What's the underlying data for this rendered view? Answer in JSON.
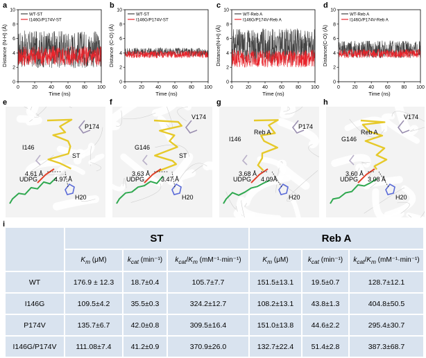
{
  "panels": {
    "a": {
      "label": "a",
      "ylabel": "Distance (N-H) (Å)",
      "xlabel": "Time (ns)",
      "legend": [
        "WT-ST",
        "I146G/P174V-ST"
      ]
    },
    "b": {
      "label": "b",
      "ylabel": "Distance (C-O) (Å)",
      "xlabel": "Time (ns)",
      "legend": [
        "WT-ST",
        "I146G/P174V-ST"
      ]
    },
    "c": {
      "label": "c",
      "ylabel": "Distance(N-H) (Å)",
      "xlabel": "Time (ns)",
      "legend": [
        "WT-Reb A",
        "I146G/P174V-Reb A"
      ]
    },
    "d": {
      "label": "d",
      "ylabel": "Distance(C-O) (Å)",
      "xlabel": "Time (ns)",
      "legend": [
        "WT-Reb A",
        "I146G/P174V-Reb A"
      ]
    }
  },
  "chart_data": [
    {
      "type": "line",
      "panel": "a",
      "title": "",
      "xlabel": "Time (ns)",
      "ylabel": "Distance (N-H) (Å)",
      "xlim": [
        0,
        100
      ],
      "ylim": [
        0,
        10
      ],
      "xticks": [
        0,
        20,
        40,
        60,
        80,
        100
      ],
      "yticks": [
        0,
        2,
        4,
        6,
        8,
        10
      ],
      "series": [
        {
          "name": "WT-ST",
          "color": "#3f3f3f",
          "baseline": 4.5,
          "spread": 2.6,
          "until": 100
        },
        {
          "name": "I146G/P174V-ST",
          "color": "#e8242b",
          "baseline": 3.6,
          "spread": 1.4,
          "until": 100
        }
      ]
    },
    {
      "type": "line",
      "panel": "b",
      "title": "",
      "xlabel": "Time (ns)",
      "ylabel": "Distance (C-O) (Å)",
      "xlim": [
        0,
        100
      ],
      "ylim": [
        0,
        10
      ],
      "xticks": [
        0,
        20,
        40,
        60,
        80,
        100
      ],
      "yticks": [
        0,
        2,
        4,
        6,
        8,
        10
      ],
      "series": [
        {
          "name": "WT-ST",
          "color": "#3f3f3f",
          "baseline": 4.1,
          "spread": 0.6,
          "until": 100
        },
        {
          "name": "I146G/P174V-ST",
          "color": "#e8242b",
          "baseline": 3.8,
          "spread": 0.5,
          "until": 100
        }
      ]
    },
    {
      "type": "line",
      "panel": "c",
      "title": "",
      "xlabel": "Time (ns)",
      "ylabel": "Distance(N-H) (Å)",
      "xlim": [
        0,
        100
      ],
      "ylim": [
        0,
        10
      ],
      "xticks": [
        0,
        20,
        40,
        60,
        80,
        100
      ],
      "yticks": [
        0,
        2,
        4,
        6,
        8,
        10
      ],
      "series": [
        {
          "name": "WT-Reb A",
          "color": "#3f3f3f",
          "baseline": 5.0,
          "spread": 2.4,
          "until": 100
        },
        {
          "name": "I146G/P174V-Reb A",
          "color": "#e8242b",
          "baseline": 3.2,
          "spread": 1.2,
          "until": 100
        }
      ]
    },
    {
      "type": "line",
      "panel": "d",
      "title": "",
      "xlabel": "Time (ns)",
      "ylabel": "Distance(C-O) (Å)",
      "xlim": [
        0,
        100
      ],
      "ylim": [
        0,
        10
      ],
      "xticks": [
        0,
        20,
        40,
        60,
        80,
        100
      ],
      "yticks": [
        0,
        2,
        4,
        6,
        8,
        10
      ],
      "series": [
        {
          "name": "WT-Reb A",
          "color": "#3f3f3f",
          "baseline": 4.5,
          "spread": 1.2,
          "until": 100
        },
        {
          "name": "I146G/P174V-Reb A",
          "color": "#e8242b",
          "baseline": 3.9,
          "spread": 0.6,
          "until": 100
        }
      ]
    }
  ],
  "structures": [
    {
      "label": "e",
      "residue_top": "P174",
      "residue_mid": "I146",
      "ligand": "ST",
      "dist1": "4.61 Å",
      "dist2": "4.97 Å",
      "cofactor": "UDPG",
      "his": "H20"
    },
    {
      "label": "f",
      "residue_top": "V174",
      "residue_mid": "G146",
      "ligand": "ST",
      "dist1": "3.63 Å",
      "dist2": "3.47 Å",
      "cofactor": "UDPG",
      "his": "H20"
    },
    {
      "label": "g",
      "residue_top": "P174",
      "residue_mid": "I146",
      "ligand": "Reb A",
      "dist1": "3.68 Å",
      "dist2": "4.09Å",
      "cofactor": "UDPG",
      "his": "H20"
    },
    {
      "label": "h",
      "residue_top": "V174",
      "residue_mid": "G146",
      "ligand": "Reb A",
      "dist1": "3.60 Å",
      "dist2": "3.08 Å",
      "cofactor": "UDPG",
      "his": "H20"
    }
  ],
  "table": {
    "label": "i",
    "groups": [
      "ST",
      "Reb A"
    ],
    "headers": [
      "K_m (μM)",
      "k_cat (min⁻¹)",
      "k_cat/K_m (mM⁻¹·min⁻¹)"
    ],
    "header_parts": [
      {
        "a": "K",
        "a_sub": "m",
        "b": " (μM)"
      },
      {
        "a": "k",
        "a_sub": "cat",
        "b": " (min⁻¹)"
      },
      {
        "a": "k",
        "a_sub": "cat",
        "b": "/",
        "c": "K",
        "c_sub": "m",
        "d": " (mM⁻¹·min⁻¹)"
      }
    ],
    "rows": [
      {
        "name": "WT",
        "vals": [
          "176.9 ± 12.3",
          "18.7±0.4",
          "105.7±7.7",
          "151.5±13.1",
          "19.5±0.7",
          "128.7±12.1"
        ]
      },
      {
        "name": "I146G",
        "vals": [
          "109.5±4.2",
          "35.5±0.3",
          "324.2±12.7",
          "108.2±13.1",
          "43.8±1.3",
          "404.8±50.5"
        ]
      },
      {
        "name": "P174V",
        "vals": [
          "135.7±6.7",
          "42.0±0.8",
          "309.5±16.4",
          "151.0±13.8",
          "44.6±2.2",
          "295.4±30.7"
        ]
      },
      {
        "name": "I146G/P174V",
        "vals": [
          "111.08±7.4",
          "41.2±0.9",
          "370.9±26.0",
          "132.7±22.4",
          "51.4±2.8",
          "387.3±68.7"
        ]
      }
    ]
  }
}
